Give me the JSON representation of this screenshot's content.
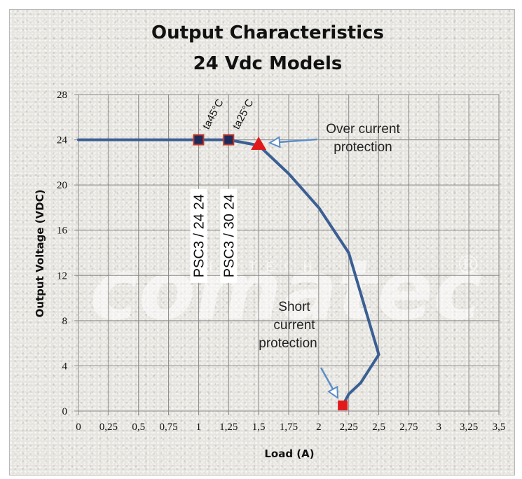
{
  "chart_data": {
    "type": "line",
    "title": [
      "Output Characteristics",
      "24 Vdc Models"
    ],
    "xlabel": "Load (A)",
    "ylabel": "Output Voltage (VDC)",
    "xlim": [
      0,
      3.5
    ],
    "ylim": [
      0,
      28
    ],
    "x_ticks": [
      "0",
      "0,25",
      "0,5",
      "0,75",
      "1",
      "1,25",
      "1,5",
      "1,75",
      "2",
      "2,25",
      "2,5",
      "2,75",
      "3",
      "3,25",
      "3,5"
    ],
    "y_ticks": [
      "0",
      "4",
      "8",
      "12",
      "16",
      "20",
      "24",
      "28"
    ],
    "grid": true,
    "series": [
      {
        "color": "#3b5f93",
        "points": [
          [
            0,
            24
          ],
          [
            1.0,
            24
          ],
          [
            1.25,
            24
          ],
          [
            1.5,
            23.5
          ],
          [
            1.75,
            21
          ],
          [
            2.0,
            18
          ],
          [
            2.25,
            14
          ],
          [
            2.5,
            5
          ],
          [
            2.35,
            2.5
          ],
          [
            2.25,
            1.5
          ],
          [
            2.2,
            0.5
          ]
        ]
      }
    ],
    "markers": [
      {
        "x": 1.0,
        "y": 24,
        "shape": "square",
        "fill": "#1c2a5c",
        "stroke": "#c0392b"
      },
      {
        "x": 1.25,
        "y": 24,
        "shape": "square",
        "fill": "#1c2a5c",
        "stroke": "#c0392b"
      },
      {
        "x": 1.5,
        "y": 23.6,
        "shape": "triangle",
        "fill": "#e01a1a"
      },
      {
        "x": 2.2,
        "y": 0.5,
        "shape": "square",
        "fill": "#e01a1a"
      }
    ],
    "annotations": {
      "over_current": [
        "Over current",
        "protection"
      ],
      "short_current": [
        "Short",
        "current",
        "protection"
      ],
      "model_labels": [
        {
          "text": "PSC3 / 24 24",
          "x": 1.0
        },
        {
          "text": "PSC3 / 30 24",
          "x": 1.25
        }
      ],
      "temp_labels": [
        {
          "text": "ta45°C",
          "x": 1.0
        },
        {
          "text": "ta25°C",
          "x": 1.25
        }
      ]
    },
    "arrow_color": "#5b8ec6"
  },
  "watermark": {
    "brand": "comatec",
    "tag": "HI TECH",
    "registered": "®"
  }
}
